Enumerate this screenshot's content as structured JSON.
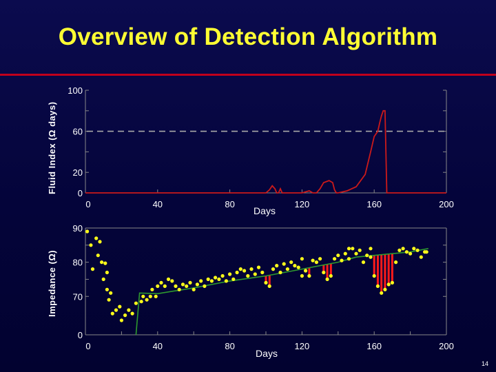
{
  "title": "Overview of Detection Algorithm",
  "page_number": "14",
  "colors": {
    "background": "#04043a",
    "title": "#ffff33",
    "rule": "#c0001c",
    "fluid_line": "#cc1a1a",
    "threshold": "#aaaaaa",
    "points": "#ffff1a",
    "trend": "#2e9a2e",
    "deviation": "#ff1a1a"
  },
  "chart_data": [
    {
      "type": "line",
      "ylabel": "Fluid Index  (Ω days)",
      "xlabel": "Days",
      "xlim": [
        0,
        200
      ],
      "ylim": [
        0,
        100
      ],
      "x_ticks": [
        "0",
        "40",
        "80",
        "120",
        "160",
        "200"
      ],
      "y_ticks": [
        "0",
        "20",
        "60",
        "100"
      ],
      "threshold": 60,
      "series": [
        {
          "x": [
            0,
            100,
            102,
            103.5,
            105,
            106,
            107,
            108,
            109,
            110,
            120,
            124,
            126,
            128,
            130,
            132,
            135,
            137,
            138,
            139,
            140,
            145,
            150,
            155,
            158,
            160,
            162,
            163,
            164,
            165,
            166,
            166.5,
            167,
            168,
            180,
            200
          ],
          "y": [
            0,
            0,
            3,
            7,
            4,
            0,
            0,
            4,
            0,
            0,
            0,
            2,
            0,
            0,
            4,
            10,
            12,
            10,
            3,
            0,
            0,
            2,
            6,
            18,
            40,
            55,
            60,
            68,
            75,
            80,
            80,
            40,
            0,
            0,
            0,
            0
          ]
        }
      ]
    },
    {
      "type": "scatter",
      "ylabel": "Impedance (Ω)",
      "xlabel": "Days",
      "xlim": [
        0,
        200
      ],
      "ylim": [
        0,
        90
      ],
      "x_ticks": [
        "0",
        "40",
        "80",
        "120",
        "160",
        "200"
      ],
      "y_ticks": [
        "0",
        "70",
        "80",
        "90"
      ],
      "trend": {
        "x": [
          28,
          30,
          40,
          60,
          80,
          100,
          120,
          140,
          150,
          160,
          170,
          180,
          190
        ],
        "y": [
          0,
          71,
          70.8,
          72.5,
          74.5,
          76,
          78,
          80,
          81.5,
          82,
          82.5,
          83,
          84
        ]
      },
      "deviation_ranges": [
        [
          98,
          103
        ],
        [
          121,
          125
        ],
        [
          131,
          137
        ],
        [
          160,
          170
        ]
      ],
      "points": [
        [
          1,
          89
        ],
        [
          3,
          85
        ],
        [
          4,
          78
        ],
        [
          6,
          87
        ],
        [
          7,
          82
        ],
        [
          8,
          86
        ],
        [
          9,
          80
        ],
        [
          11,
          79.7
        ],
        [
          10,
          75
        ],
        [
          12,
          77
        ],
        [
          12,
          72
        ],
        [
          13,
          69
        ],
        [
          14,
          71
        ],
        [
          15,
          65
        ],
        [
          17,
          66
        ],
        [
          19,
          67
        ],
        [
          20,
          63
        ],
        [
          22,
          64.5
        ],
        [
          24,
          66
        ],
        [
          26,
          65
        ],
        [
          28,
          68
        ],
        [
          31,
          68.5
        ],
        [
          32,
          70
        ],
        [
          34,
          69
        ],
        [
          36,
          70
        ],
        [
          37,
          72
        ],
        [
          39,
          70
        ],
        [
          40,
          73
        ],
        [
          42,
          74
        ],
        [
          44,
          73
        ],
        [
          46,
          75
        ],
        [
          48,
          74.5
        ],
        [
          50,
          73
        ],
        [
          52,
          72
        ],
        [
          54,
          73.5
        ],
        [
          56,
          73
        ],
        [
          58,
          74
        ],
        [
          60,
          72
        ],
        [
          62,
          73.5
        ],
        [
          64,
          74.5
        ],
        [
          66,
          73
        ],
        [
          68,
          75
        ],
        [
          70,
          74.5
        ],
        [
          72,
          75.5
        ],
        [
          74,
          75
        ],
        [
          76,
          76
        ],
        [
          78,
          74.5
        ],
        [
          80,
          76.5
        ],
        [
          82,
          75
        ],
        [
          84,
          77
        ],
        [
          86,
          78
        ],
        [
          88,
          77.5
        ],
        [
          90,
          76
        ],
        [
          92,
          78
        ],
        [
          94,
          76.5
        ],
        [
          96,
          78.5
        ],
        [
          98,
          77
        ],
        [
          100,
          74
        ],
        [
          102,
          73
        ],
        [
          104,
          78
        ],
        [
          106,
          79
        ],
        [
          108,
          77
        ],
        [
          110,
          79.5
        ],
        [
          112,
          78
        ],
        [
          114,
          80
        ],
        [
          116,
          79
        ],
        [
          118,
          78.5
        ],
        [
          120,
          81
        ],
        [
          122,
          77.5
        ],
        [
          124,
          76
        ],
        [
          126,
          80.5
        ],
        [
          128,
          80
        ],
        [
          130,
          81
        ],
        [
          132,
          77
        ],
        [
          134,
          75
        ],
        [
          136,
          76
        ],
        [
          138,
          81
        ],
        [
          140,
          82
        ],
        [
          142,
          80.5
        ],
        [
          144,
          82.5
        ],
        [
          146,
          81
        ],
        [
          148,
          84
        ],
        [
          150,
          82.5
        ],
        [
          152,
          83.5
        ],
        [
          154,
          80
        ],
        [
          156,
          82
        ],
        [
          158,
          81.5
        ],
        [
          160,
          76
        ],
        [
          162,
          73
        ],
        [
          164,
          71
        ],
        [
          166,
          72
        ],
        [
          168,
          73.5
        ],
        [
          170,
          74
        ],
        [
          172,
          80
        ],
        [
          174,
          83.5
        ],
        [
          176,
          84
        ],
        [
          178,
          83
        ],
        [
          180,
          82.5
        ],
        [
          182,
          84
        ],
        [
          184,
          83.5
        ],
        [
          186,
          81.5
        ],
        [
          188,
          83
        ],
        [
          189,
          83
        ],
        [
          158,
          84
        ],
        [
          146,
          84
        ],
        [
          120,
          76
        ]
      ]
    }
  ]
}
